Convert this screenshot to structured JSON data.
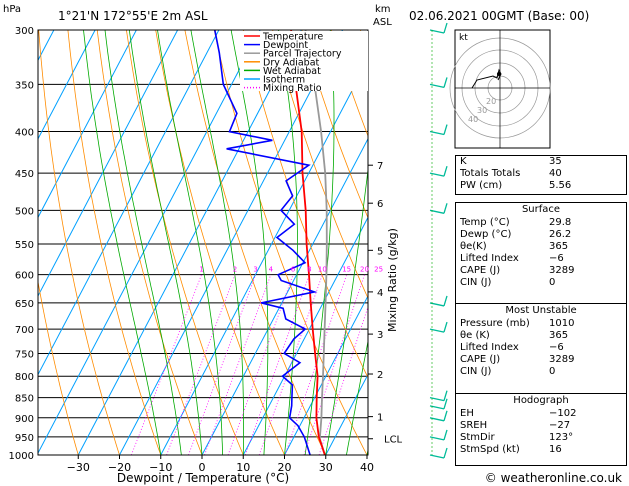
{
  "header": {
    "pressure_unit": "hPa",
    "location": "1°21'N  172°55'E  2m  ASL",
    "km_label": "km",
    "asl_label": "ASL",
    "datetime": "02.06.2021  00GMT  (Base: 00)"
  },
  "chart_data": {
    "type": "skew-t",
    "title": "1°21'N  172°55'E  2m  ASL",
    "xlabel": "Dewpoint / Temperature (°C)",
    "ylabel_right": "Mixing Ratio (g/kg)",
    "x_ticks": [
      -30,
      -20,
      -10,
      0,
      10,
      20,
      30,
      40
    ],
    "pressure_levels": [
      300,
      350,
      400,
      450,
      500,
      550,
      600,
      650,
      700,
      750,
      800,
      850,
      900,
      950,
      1000
    ],
    "pressure_labels": [
      "300",
      "350",
      "400",
      "450",
      "500",
      "550",
      "600",
      "650",
      "700",
      "750",
      "800",
      "850",
      "900",
      "950",
      "1000"
    ],
    "height_km": [
      {
        "km": "7",
        "p": 440
      },
      {
        "km": "6",
        "p": 490
      },
      {
        "km": "5",
        "p": 560
      },
      {
        "km": "4",
        "p": 630
      },
      {
        "km": "3",
        "p": 710
      },
      {
        "km": "2",
        "p": 795
      },
      {
        "km": "1",
        "p": 897
      },
      {
        "km": "LCL",
        "p": 955
      }
    ],
    "mixing_ratio_labels": [
      "1",
      "2",
      "3",
      "4",
      "6",
      "8",
      "10",
      "15",
      "20",
      "25"
    ],
    "mixing_ratio_values": [
      1,
      2,
      3,
      4,
      6,
      8,
      10,
      15,
      20,
      25
    ],
    "temperature": [
      {
        "p": 1000,
        "t": 29.8
      },
      {
        "p": 950,
        "t": 26.0
      },
      {
        "p": 900,
        "t": 23.0
      },
      {
        "p": 850,
        "t": 20.5
      },
      {
        "p": 800,
        "t": 18.0
      },
      {
        "p": 750,
        "t": 14.5
      },
      {
        "p": 700,
        "t": 10.8
      },
      {
        "p": 650,
        "t": 7.0
      },
      {
        "p": 600,
        "t": 3.0
      },
      {
        "p": 550,
        "t": -1.5
      },
      {
        "p": 500,
        "t": -6.0
      },
      {
        "p": 450,
        "t": -11.5
      },
      {
        "p": 400,
        "t": -17.0
      },
      {
        "p": 350,
        "t": -24.5
      },
      {
        "p": 300,
        "t": -32.5
      }
    ],
    "dewpoint": [
      {
        "p": 1000,
        "t": 26.2
      },
      {
        "p": 950,
        "t": 22.5
      },
      {
        "p": 920,
        "t": 19.5
      },
      {
        "p": 900,
        "t": 16.5
      },
      {
        "p": 870,
        "t": 15.5
      },
      {
        "p": 850,
        "t": 14.5
      },
      {
        "p": 820,
        "t": 13.0
      },
      {
        "p": 800,
        "t": 9.5
      },
      {
        "p": 770,
        "t": 12.0
      },
      {
        "p": 750,
        "t": 7.0
      },
      {
        "p": 720,
        "t": 7.5
      },
      {
        "p": 700,
        "t": 9.0
      },
      {
        "p": 680,
        "t": 3.0
      },
      {
        "p": 660,
        "t": 1.0
      },
      {
        "p": 650,
        "t": -5.0
      },
      {
        "p": 630,
        "t": 6.5
      },
      {
        "p": 610,
        "t": -3.0
      },
      {
        "p": 600,
        "t": -4.5
      },
      {
        "p": 580,
        "t": 0.5
      },
      {
        "p": 560,
        "t": -4.0
      },
      {
        "p": 540,
        "t": -9.5
      },
      {
        "p": 520,
        "t": -7.0
      },
      {
        "p": 500,
        "t": -12.0
      },
      {
        "p": 480,
        "t": -11.0
      },
      {
        "p": 460,
        "t": -14.5
      },
      {
        "p": 440,
        "t": -11.0
      },
      {
        "p": 420,
        "t": -33.0
      },
      {
        "p": 410,
        "t": -23.0
      },
      {
        "p": 400,
        "t": -34.5
      },
      {
        "p": 380,
        "t": -35.0
      },
      {
        "p": 350,
        "t": -42.0
      },
      {
        "p": 320,
        "t": -47.0
      },
      {
        "p": 300,
        "t": -51.0
      }
    ],
    "parcel": [
      {
        "p": 1000,
        "t": 29.8
      },
      {
        "p": 955,
        "t": 26.5
      },
      {
        "p": 900,
        "t": 24.2
      },
      {
        "p": 850,
        "t": 21.8
      },
      {
        "p": 800,
        "t": 19.3
      },
      {
        "p": 750,
        "t": 16.6
      },
      {
        "p": 700,
        "t": 13.7
      },
      {
        "p": 650,
        "t": 10.6
      },
      {
        "p": 600,
        "t": 7.2
      },
      {
        "p": 550,
        "t": 3.4
      },
      {
        "p": 500,
        "t": -0.9
      },
      {
        "p": 450,
        "t": -6.0
      },
      {
        "p": 400,
        "t": -12.3
      },
      {
        "p": 350,
        "t": -19.9
      },
      {
        "p": 300,
        "t": -29.0
      }
    ],
    "legend": [
      "Temperature",
      "Dewpoint",
      "Parcel Trajectory",
      "Dry Adiabat",
      "Wet Adiabat",
      "Isotherm",
      "Mixing Ratio"
    ],
    "legend_colors": [
      "#ff0000",
      "#0000ff",
      "#999999",
      "#ff8c00",
      "#00aa00",
      "#00a0ff",
      "#ff00ff"
    ],
    "wind_barbs_p": [
      300,
      350,
      400,
      450,
      500,
      650,
      700,
      850,
      870,
      900,
      950,
      1000
    ]
  },
  "hodograph": {
    "label": "kt",
    "ring_labels": [
      "20",
      "30",
      "40"
    ]
  },
  "indices": [
    {
      "label": "K",
      "value": "35"
    },
    {
      "label": "Totals Totals",
      "value": "40"
    },
    {
      "label": "PW (cm)",
      "value": "5.56"
    }
  ],
  "surface": {
    "title": "Surface",
    "rows": [
      {
        "label": "Temp (°C)",
        "value": "29.8"
      },
      {
        "label": "Dewp (°C)",
        "value": "26.2"
      },
      {
        "label": "θe(K)",
        "value": "365"
      },
      {
        "label": "Lifted Index",
        "value": "−6"
      },
      {
        "label": "CAPE (J)",
        "value": "3289"
      },
      {
        "label": "CIN (J)",
        "value": "0"
      }
    ]
  },
  "most_unstable": {
    "title": "Most Unstable",
    "rows": [
      {
        "label": "Pressure (mb)",
        "value": "1010"
      },
      {
        "label": "θe (K)",
        "value": "365"
      },
      {
        "label": "Lifted Index",
        "value": "−6"
      },
      {
        "label": "CAPE (J)",
        "value": "3289"
      },
      {
        "label": "CIN (J)",
        "value": "0"
      }
    ]
  },
  "hodo_params": {
    "title": "Hodograph",
    "rows": [
      {
        "label": "EH",
        "value": "−102"
      },
      {
        "label": "SREH",
        "value": "−27"
      },
      {
        "label": "StmDir",
        "value": "123°"
      },
      {
        "label": "StmSpd (kt)",
        "value": "16"
      }
    ]
  },
  "footer": {
    "copyright": "© weatheronline.co.uk"
  },
  "colors": {
    "temperature": "#ff0000",
    "dewpoint": "#0000ff",
    "parcel": "#999999",
    "dry_adiabat": "#ff8c00",
    "wet_adiabat": "#00aa00",
    "isotherm": "#00a0ff",
    "mixing_ratio": "#ff00ff",
    "barb": "#00bb99"
  }
}
